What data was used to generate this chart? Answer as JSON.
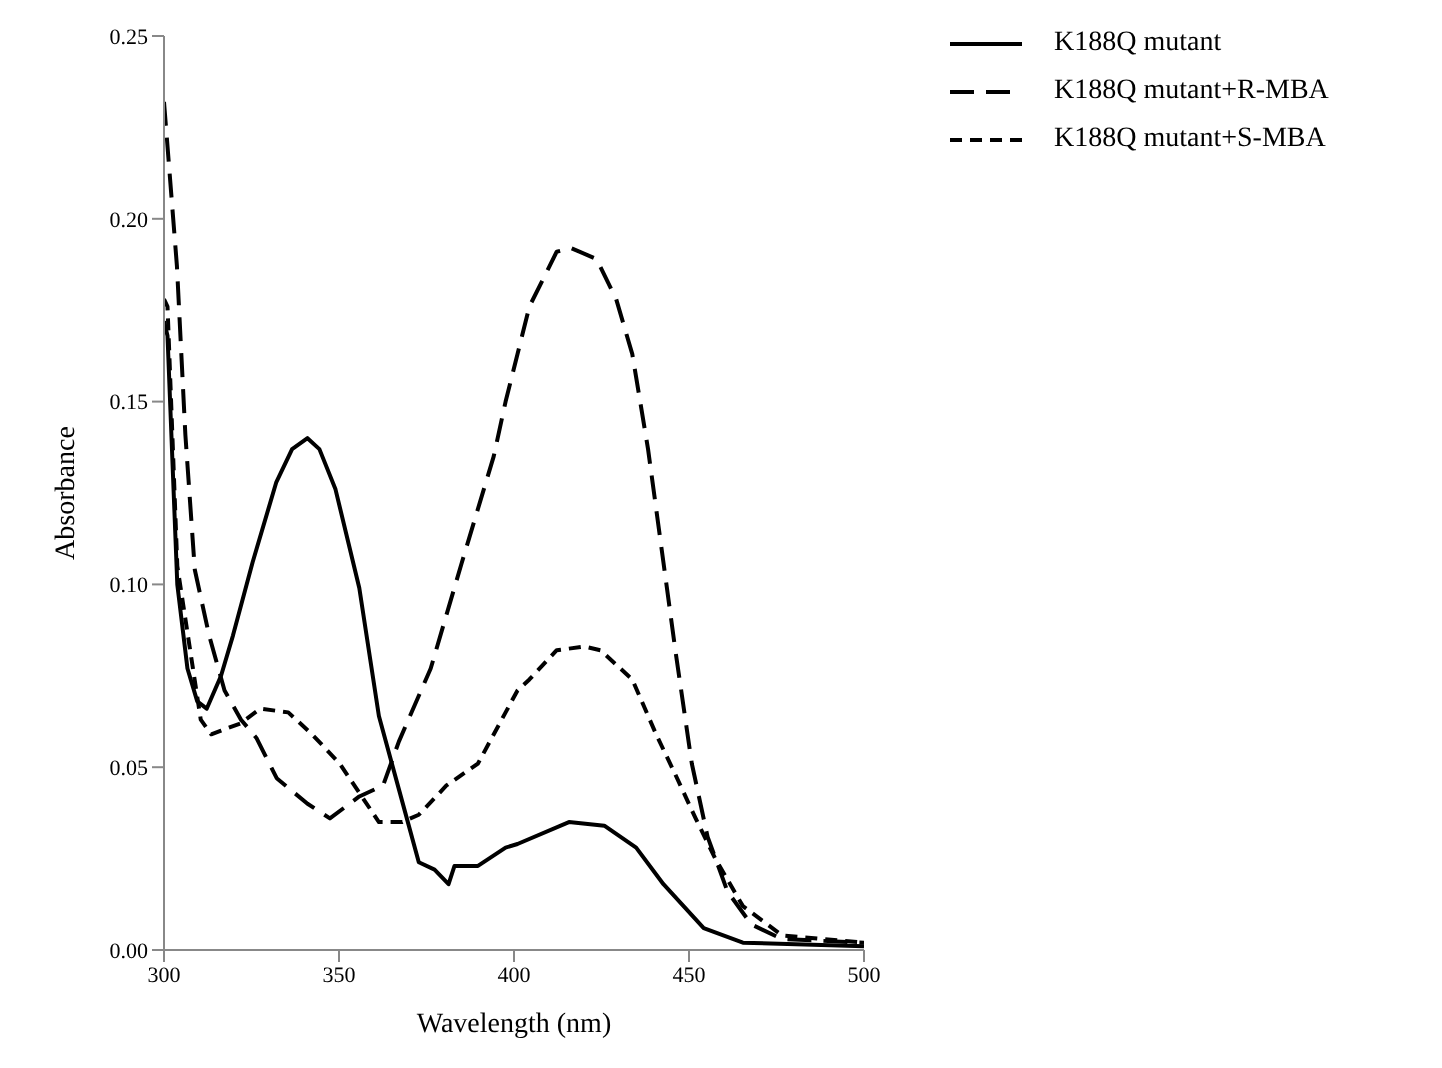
{
  "chart_data": {
    "type": "line",
    "xlabel": "Wavelength (nm)",
    "ylabel": "Absorbance",
    "xlim": [
      300,
      500
    ],
    "xticks": [
      300,
      350,
      400,
      450,
      500
    ],
    "ylim": [
      0,
      0.25
    ],
    "yticks": [
      {
        "value": 0,
        "label": "0.00"
      },
      {
        "value": 0.05,
        "label": "0.05"
      },
      {
        "value": 0.1,
        "label": "0.10"
      },
      {
        "value": 0.15,
        "label": "0.15"
      },
      {
        "value": 0.2,
        "label": "0.20"
      },
      {
        "value": 0.25,
        "label": "0.25"
      }
    ],
    "grid": false,
    "legend": "top right",
    "marker": "none",
    "series": [
      {
        "name": "K188Q mutant",
        "color": "#000000",
        "line_style": "solid",
        "x": [
          300,
          301,
          303.8,
          306.7,
          309.5,
          312.2,
          316.3,
          319.7,
          325.3,
          332.1,
          336.6,
          341,
          344.4,
          349,
          355.8,
          361.4,
          367.1,
          372.8,
          377.3,
          381.3,
          383,
          389.7,
          397.6,
          401,
          415.7,
          425.8,
          434.9,
          442.7,
          454.2,
          465.4,
          500
        ],
        "values": [
          0.172,
          0.168,
          0.1,
          0.077,
          0.068,
          0.066,
          0.075,
          0.086,
          0.106,
          0.128,
          0.137,
          0.14,
          0.137,
          0.126,
          0.099,
          0.064,
          0.044,
          0.024,
          0.022,
          0.018,
          0.023,
          0.023,
          0.028,
          0.029,
          0.035,
          0.034,
          0.028,
          0.018,
          0.006,
          0.002,
          0.001
        ]
      },
      {
        "name": "K188Q mutant+R-MBA",
        "color": "#000000",
        "line_style": "dashed",
        "x": [
          300,
          303.7,
          306.1,
          308.8,
          312.9,
          317.3,
          322,
          326.4,
          332.2,
          341,
          347.4,
          355.8,
          362.6,
          367.1,
          376.2,
          385.1,
          394.2,
          397.6,
          404.4,
          412.2,
          416.3,
          423.6,
          429.2,
          433.8,
          438.3,
          442.7,
          446.1,
          450.8,
          455.3,
          461,
          467.8,
          476.6,
          500
        ],
        "values": [
          0.232,
          0.187,
          0.141,
          0.104,
          0.086,
          0.071,
          0.063,
          0.058,
          0.047,
          0.04,
          0.036,
          0.042,
          0.045,
          0.057,
          0.077,
          0.106,
          0.135,
          0.15,
          0.176,
          0.191,
          0.192,
          0.189,
          0.178,
          0.163,
          0.137,
          0.106,
          0.082,
          0.051,
          0.031,
          0.016,
          0.007,
          0.003,
          0.002
        ]
      },
      {
        "name": "K188Q mutant+S-MBA",
        "color": "#000000",
        "line_style": "dashed",
        "x": [
          300,
          301,
          303.8,
          310.5,
          313.5,
          316.3,
          321.9,
          327.5,
          335.5,
          342.3,
          350.2,
          355.8,
          361.4,
          368.1,
          372.8,
          380.7,
          389.7,
          397.6,
          401,
          404.4,
          412.2,
          420.2,
          424.7,
          433.8,
          440.6,
          446.1,
          451.9,
          457.5,
          465.4,
          476.6,
          500
        ],
        "values": [
          0.178,
          0.176,
          0.105,
          0.063,
          0.059,
          0.06,
          0.062,
          0.066,
          0.065,
          0.059,
          0.051,
          0.043,
          0.035,
          0.035,
          0.037,
          0.045,
          0.051,
          0.065,
          0.071,
          0.074,
          0.082,
          0.083,
          0.082,
          0.074,
          0.059,
          0.048,
          0.036,
          0.025,
          0.012,
          0.004,
          0.002
        ]
      }
    ]
  }
}
